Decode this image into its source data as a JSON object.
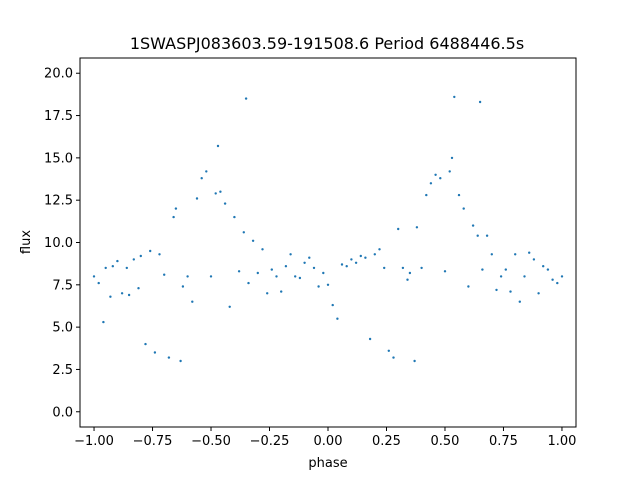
{
  "chart_data": {
    "type": "scatter",
    "title": "1SWASPJ083603.59-191508.6 Period 6488446.5s",
    "xlabel": "phase",
    "ylabel": "flux",
    "xlim": [
      -1.06,
      1.06
    ],
    "ylim": [
      -0.9,
      20.9
    ],
    "xticks": [
      -1.0,
      -0.75,
      -0.5,
      -0.25,
      0.0,
      0.25,
      0.5,
      0.75,
      1.0
    ],
    "xtick_labels": [
      "−1.00",
      "−0.75",
      "−0.50",
      "−0.25",
      "0.00",
      "0.25",
      "0.50",
      "0.75",
      "1.00"
    ],
    "yticks": [
      0.0,
      2.5,
      5.0,
      7.5,
      10.0,
      12.5,
      15.0,
      17.5,
      20.0
    ],
    "ytick_labels": [
      "0.0",
      "2.5",
      "5.0",
      "7.5",
      "10.0",
      "12.5",
      "15.0",
      "17.5",
      "20.0"
    ],
    "grid": false,
    "marker_color": "#1f77b4",
    "series": [
      {
        "x": [
          -1.0,
          -0.98,
          -0.96,
          -0.95,
          -0.93,
          -0.92,
          -0.9,
          -0.88,
          -0.86,
          -0.85,
          -0.83,
          -0.81,
          -0.8,
          -0.78,
          -0.76,
          -0.74,
          -0.72,
          -0.7,
          -0.68,
          -0.66,
          -0.65,
          -0.63,
          -0.62,
          -0.6,
          -0.58,
          -0.56,
          -0.54,
          -0.52,
          -0.5,
          -0.48,
          -0.47,
          -0.46,
          -0.44,
          -0.42,
          -0.4,
          -0.38,
          -0.36,
          -0.35,
          -0.34,
          -0.32,
          -0.3,
          -0.28,
          -0.26,
          -0.24,
          -0.22,
          -0.2,
          -0.18,
          -0.16,
          -0.14,
          -0.12,
          -0.1,
          -0.08,
          -0.06,
          -0.04,
          -0.02,
          0.0,
          0.02,
          0.04,
          0.06,
          0.08,
          0.1,
          0.12,
          0.14,
          0.16,
          0.18,
          0.2,
          0.22,
          0.24,
          0.26,
          0.28,
          0.3,
          0.32,
          0.34,
          0.35,
          0.37,
          0.38,
          0.4,
          0.42,
          0.44,
          0.46,
          0.48,
          0.5,
          0.52,
          0.53,
          0.54,
          0.56,
          0.58,
          0.6,
          0.62,
          0.64,
          0.65,
          0.66,
          0.68,
          0.7,
          0.72,
          0.74,
          0.76,
          0.78,
          0.8,
          0.82,
          0.84,
          0.86,
          0.88,
          0.9,
          0.92,
          0.94,
          0.96,
          0.98,
          1.0
        ],
        "y": [
          8.0,
          7.6,
          5.3,
          8.5,
          6.8,
          8.6,
          8.9,
          7.0,
          8.5,
          6.9,
          9.0,
          7.3,
          9.2,
          4.0,
          9.5,
          3.5,
          9.3,
          8.1,
          3.2,
          11.5,
          12.0,
          3.0,
          7.4,
          8.0,
          6.5,
          12.6,
          13.8,
          14.2,
          8.0,
          12.9,
          15.7,
          13.0,
          12.3,
          6.2,
          11.5,
          8.3,
          10.6,
          18.5,
          7.6,
          10.1,
          8.2,
          9.6,
          7.0,
          8.4,
          8.0,
          7.1,
          8.6,
          9.3,
          8.0,
          7.9,
          8.8,
          9.1,
          8.5,
          7.4,
          8.2,
          7.5,
          6.3,
          5.5,
          8.7,
          8.6,
          9.0,
          8.8,
          9.2,
          9.1,
          4.3,
          9.3,
          9.6,
          8.5,
          3.6,
          3.2,
          10.8,
          8.5,
          7.8,
          8.2,
          3.0,
          10.9,
          8.5,
          12.8,
          13.5,
          14.0,
          13.8,
          8.3,
          14.2,
          15.0,
          18.6,
          12.8,
          12.0,
          7.4,
          11.0,
          10.4,
          18.3,
          8.4,
          10.4,
          9.3,
          7.2,
          8.0,
          8.4,
          7.1,
          9.3,
          6.5,
          8.0,
          9.4,
          9.0,
          7.0,
          8.6,
          8.4,
          7.8,
          7.6,
          8.0
        ]
      }
    ]
  }
}
